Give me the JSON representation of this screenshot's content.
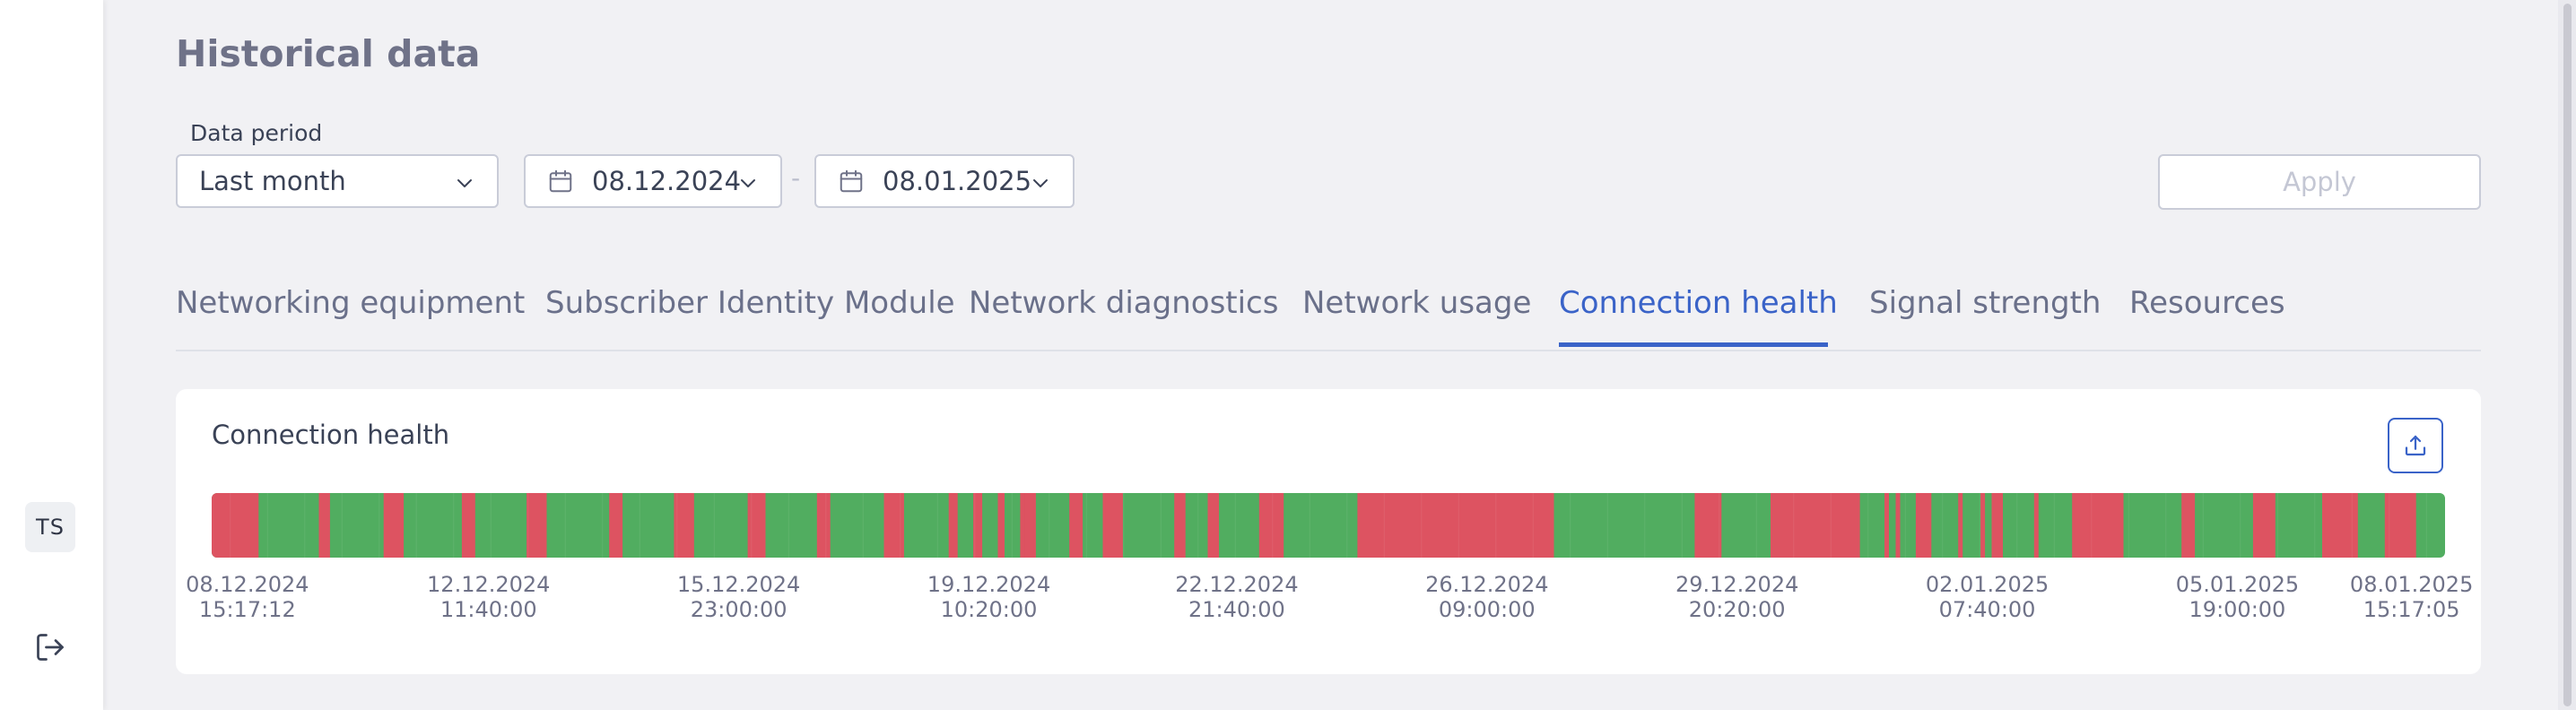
{
  "sidebar": {
    "avatar_initials": "TS",
    "logout_icon": "logout-icon"
  },
  "header": {
    "title": "Historical data"
  },
  "filters": {
    "period_label": "Data period",
    "period_value": "Last month",
    "from_date": "08.12.2024",
    "to_date": "08.01.2025",
    "separator": "-",
    "apply_label": "Apply"
  },
  "tabs": [
    {
      "label": "Networking equipment"
    },
    {
      "label": "Subscriber Identity Module"
    },
    {
      "label": "Network diagnostics"
    },
    {
      "label": "Network usage"
    },
    {
      "label": "Connection health",
      "active": true
    },
    {
      "label": "Signal strength"
    },
    {
      "label": "Resources"
    }
  ],
  "card": {
    "title": "Connection health",
    "export_icon": "export-icon"
  },
  "colors": {
    "healthy": "#51ad60",
    "unhealthy": "#dd5361",
    "accent": "#3a63c8"
  },
  "chart_data": {
    "type": "timeline",
    "x_range": [
      "08.12.2024 15:17:12",
      "08.01.2025 15:17:05"
    ],
    "states": [
      "healthy",
      "unhealthy"
    ],
    "unhealthy_fractions": [
      [
        0.0,
        0.021
      ],
      [
        0.048,
        0.053
      ],
      [
        0.077,
        0.086
      ],
      [
        0.112,
        0.118
      ],
      [
        0.141,
        0.15
      ],
      [
        0.178,
        0.184
      ],
      [
        0.207,
        0.216
      ],
      [
        0.24,
        0.248
      ],
      [
        0.271,
        0.277
      ],
      [
        0.301,
        0.31
      ],
      [
        0.33,
        0.334
      ],
      [
        0.341,
        0.345
      ],
      [
        0.352,
        0.355
      ],
      [
        0.362,
        0.366
      ],
      [
        0.365,
        0.369
      ],
      [
        0.364,
        0.368
      ],
      [
        0.384,
        0.39
      ],
      [
        0.399,
        0.408
      ],
      [
        0.431,
        0.436
      ],
      [
        0.446,
        0.451
      ],
      [
        0.469,
        0.48
      ],
      [
        0.513,
        0.601
      ],
      [
        0.664,
        0.676
      ],
      [
        0.698,
        0.738
      ],
      [
        0.749,
        0.751
      ],
      [
        0.754,
        0.756
      ],
      [
        0.763,
        0.77
      ],
      [
        0.782,
        0.784
      ],
      [
        0.792,
        0.794
      ],
      [
        0.797,
        0.802
      ],
      [
        0.816,
        0.818
      ],
      [
        0.833,
        0.856
      ],
      [
        0.882,
        0.888
      ],
      [
        0.914,
        0.924
      ],
      [
        0.945,
        0.961
      ],
      [
        0.973,
        0.987
      ]
    ],
    "tick_labels": [
      {
        "date": "08.12.2024",
        "time": "15:17:12"
      },
      {
        "date": "12.12.2024",
        "time": "11:40:00"
      },
      {
        "date": "15.12.2024",
        "time": "23:00:00"
      },
      {
        "date": "19.12.2024",
        "time": "10:20:00"
      },
      {
        "date": "22.12.2024",
        "time": "21:40:00"
      },
      {
        "date": "26.12.2024",
        "time": "09:00:00"
      },
      {
        "date": "29.12.2024",
        "time": "20:20:00"
      },
      {
        "date": "02.01.2025",
        "time": "07:40:00"
      },
      {
        "date": "05.01.2025",
        "time": "19:00:00"
      },
      {
        "date": "08.01.2025",
        "time": "15:17:05"
      }
    ]
  }
}
